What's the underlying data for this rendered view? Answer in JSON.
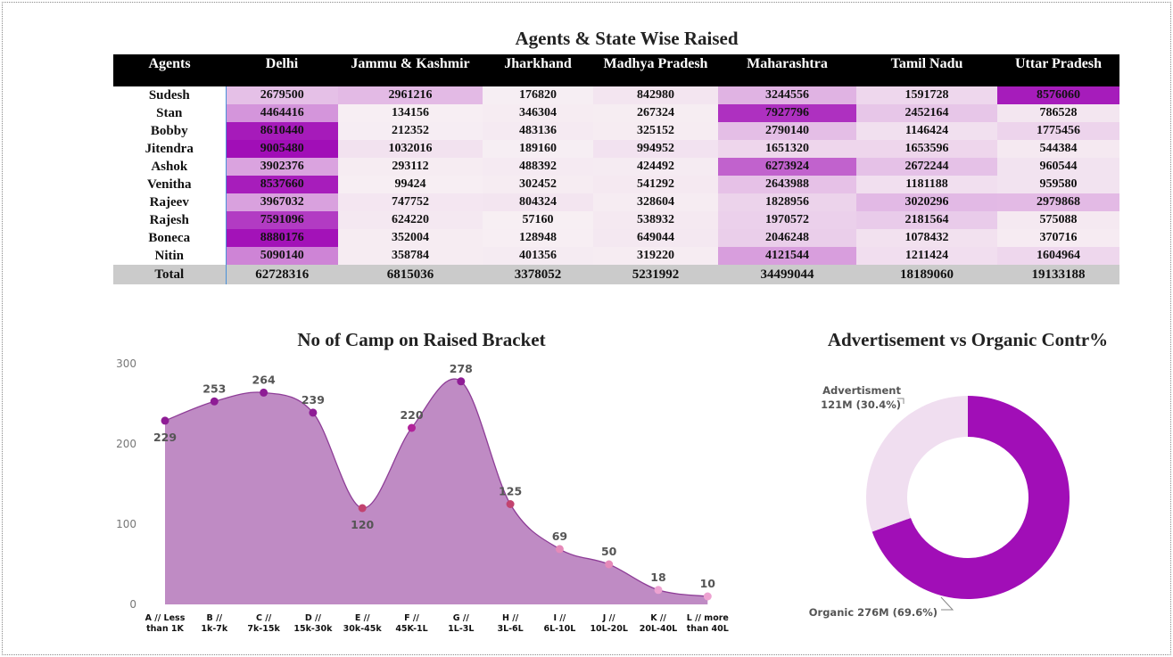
{
  "heatmap": {
    "title": "Agents & State Wise Raised",
    "corner_label": "Agents",
    "states": [
      "Delhi",
      "Jammu & Kashmir",
      "Jharkhand",
      "Madhya Pradesh",
      "Maharashtra",
      "Tamil Nadu",
      "Uttar Pradesh"
    ],
    "rows": [
      {
        "agent": "Sudesh",
        "values": [
          2679500,
          2961216,
          176820,
          842980,
          3244556,
          1591728,
          8576060
        ]
      },
      {
        "agent": "Stan",
        "values": [
          4464416,
          134156,
          346304,
          267324,
          7927796,
          2452164,
          786528
        ]
      },
      {
        "agent": "Bobby",
        "values": [
          8610440,
          212352,
          483136,
          325152,
          2790140,
          1146424,
          1775456
        ]
      },
      {
        "agent": "Jitendra",
        "values": [
          9005480,
          1032016,
          189160,
          994952,
          1651320,
          1653596,
          544384
        ]
      },
      {
        "agent": "Ashok",
        "values": [
          3902376,
          293112,
          488392,
          424492,
          6273924,
          2672244,
          960544
        ]
      },
      {
        "agent": "Venitha",
        "values": [
          8537660,
          99424,
          302452,
          541292,
          2643988,
          1181188,
          959580
        ]
      },
      {
        "agent": "Rajeev",
        "values": [
          3967032,
          747752,
          804324,
          328604,
          1828956,
          3020296,
          2979868
        ]
      },
      {
        "agent": "Rajesh",
        "values": [
          7591096,
          624220,
          57160,
          538932,
          1970572,
          2181564,
          575088
        ]
      },
      {
        "agent": "Boneca",
        "values": [
          8880176,
          352004,
          128948,
          649044,
          2046248,
          1078432,
          370716
        ]
      },
      {
        "agent": "Nitin",
        "values": [
          5090140,
          358784,
          401356,
          319220,
          4121544,
          1211424,
          1604964
        ]
      }
    ],
    "total_label": "Total",
    "totals": [
      62728316,
      6815036,
      3378052,
      5231992,
      34499044,
      18189060,
      19133188
    ],
    "color_low": "#f7eff3",
    "color_high": "#a10eb7"
  },
  "chart_data": [
    {
      "type": "area",
      "title": "No of Camp on Raised Bracket",
      "categories": [
        [
          "A // Less",
          "than 1K"
        ],
        [
          "B //",
          "1k-7k"
        ],
        [
          "C //",
          "7k-15k"
        ],
        [
          "D //",
          "15k-30k"
        ],
        [
          "E //",
          "30k-45k"
        ],
        [
          "F //",
          "45K-1L"
        ],
        [
          "G //",
          "1L-3L"
        ],
        [
          "H //",
          "3L-6L"
        ],
        [
          "I //",
          "6L-10L"
        ],
        [
          "J //",
          "10L-20L"
        ],
        [
          "K //",
          "20L-40L"
        ],
        [
          "L // more",
          "than 40L"
        ]
      ],
      "values": [
        229,
        253,
        264,
        239,
        120,
        220,
        278,
        125,
        69,
        50,
        18,
        10
      ],
      "data_labels": [
        "229",
        "253",
        "264",
        "239",
        "120",
        "220",
        "278",
        "125",
        "69",
        "50",
        "18",
        "10"
      ],
      "y_ticks": [
        "0",
        "100",
        "200",
        "300"
      ],
      "ylim": [
        0,
        300
      ],
      "fill_color": "#bf8bc4",
      "line_color": "#8e3d97",
      "marker_colors": [
        "#8e1c95",
        "#8e1c95",
        "#8e1c95",
        "#8e1c95",
        "#c2436f",
        "#b1239a",
        "#8e1c95",
        "#c2436f",
        "#e58ab9",
        "#e58ab9",
        "#eda2d1",
        "#eda2d1"
      ]
    },
    {
      "type": "pie",
      "title": "Advertisement vs Organic Contr%",
      "slices": [
        {
          "label": "Advertisment",
          "value_text": "121M (30.4%)",
          "value": 121,
          "percent": 30.4,
          "color": "#f0def0"
        },
        {
          "label": "Organic",
          "value_text": "276M (69.6%)",
          "value": 276,
          "percent": 69.6,
          "color": "#a10eb7"
        }
      ],
      "labels": {
        "advert_line1": "Advertisment",
        "advert_line2": "121M (30.4%)",
        "organic": "Organic 276M (69.6%)"
      }
    }
  ]
}
